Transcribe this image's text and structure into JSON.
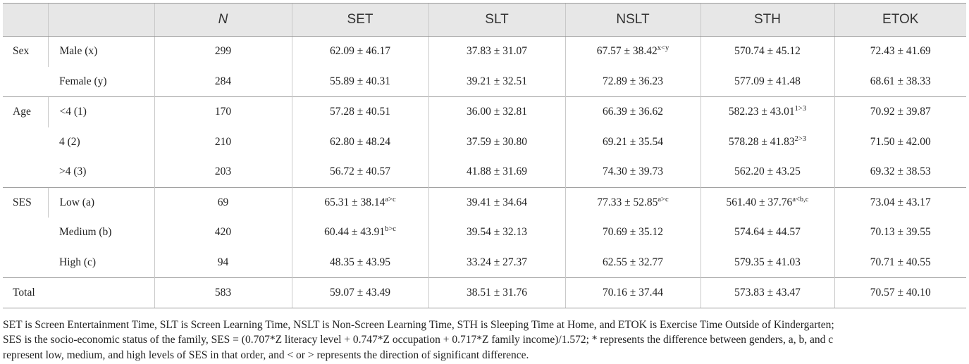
{
  "headers": [
    "",
    "",
    "N",
    "SET",
    "SLT",
    "NSLT",
    "STH",
    "ETOK"
  ],
  "groups": [
    {
      "label": "Sex",
      "rows": [
        {
          "name": "Male (x)",
          "n": "299",
          "cells": [
            {
              "v": "62.09 ± 46.17",
              "s": ""
            },
            {
              "v": "37.83 ± 31.07",
              "s": ""
            },
            {
              "v": "67.57 ± 38.42",
              "s": "x<y"
            },
            {
              "v": "570.74 ± 45.12",
              "s": ""
            },
            {
              "v": "72.43 ± 41.69",
              "s": ""
            }
          ]
        },
        {
          "name": "Female (y)",
          "n": "284",
          "cells": [
            {
              "v": "55.89 ± 40.31",
              "s": ""
            },
            {
              "v": "39.21 ± 32.51",
              "s": ""
            },
            {
              "v": "72.89 ± 36.23",
              "s": ""
            },
            {
              "v": "577.09 ± 41.48",
              "s": ""
            },
            {
              "v": "68.61 ± 38.33",
              "s": ""
            }
          ]
        }
      ]
    },
    {
      "label": "Age",
      "rows": [
        {
          "name": "<4 (1)",
          "n": "170",
          "cells": [
            {
              "v": "57.28 ± 40.51",
              "s": ""
            },
            {
              "v": "36.00 ± 32.81",
              "s": ""
            },
            {
              "v": "66.39 ± 36.62",
              "s": ""
            },
            {
              "v": "582.23 ± 43.01",
              "s": "1>3"
            },
            {
              "v": "70.92 ± 39.87",
              "s": ""
            }
          ]
        },
        {
          "name": "4 (2)",
          "n": "210",
          "cells": [
            {
              "v": "62.80 ± 48.24",
              "s": ""
            },
            {
              "v": "37.59 ± 30.80",
              "s": ""
            },
            {
              "v": "69.21 ± 35.54",
              "s": ""
            },
            {
              "v": "578.28 ± 41.83",
              "s": "2>3"
            },
            {
              "v": "71.50 ± 42.00",
              "s": ""
            }
          ]
        },
        {
          "name": ">4 (3)",
          "n": "203",
          "cells": [
            {
              "v": "56.72 ± 40.57",
              "s": ""
            },
            {
              "v": "41.88 ± 31.69",
              "s": ""
            },
            {
              "v": "74.30 ± 39.73",
              "s": ""
            },
            {
              "v": "562.20 ± 43.25",
              "s": ""
            },
            {
              "v": "69.32 ± 38.53",
              "s": ""
            }
          ]
        }
      ]
    },
    {
      "label": "SES",
      "rows": [
        {
          "name": "Low (a)",
          "n": "69",
          "cells": [
            {
              "v": "65.31 ± 38.14",
              "s": "a>c"
            },
            {
              "v": "39.41 ± 34.64",
              "s": ""
            },
            {
              "v": "77.33 ± 52.85",
              "s": "a>c"
            },
            {
              "v": "561.40 ± 37.76",
              "s": "a<b,c"
            },
            {
              "v": "73.04 ± 43.17",
              "s": ""
            }
          ]
        },
        {
          "name": "Medium (b)",
          "n": "420",
          "cells": [
            {
              "v": "60.44 ± 43.91",
              "s": "b>c"
            },
            {
              "v": "39.54 ± 32.13",
              "s": ""
            },
            {
              "v": "70.69 ± 35.12",
              "s": ""
            },
            {
              "v": "574.64 ± 44.57",
              "s": ""
            },
            {
              "v": "70.13 ± 39.55",
              "s": ""
            }
          ]
        },
        {
          "name": "High (c)",
          "n": "94",
          "cells": [
            {
              "v": "48.35 ± 43.95",
              "s": ""
            },
            {
              "v": "33.24 ± 27.37",
              "s": ""
            },
            {
              "v": "62.55 ± 32.77",
              "s": ""
            },
            {
              "v": "579.35 ± 41.03",
              "s": ""
            },
            {
              "v": "70.71 ± 40.55",
              "s": ""
            }
          ]
        }
      ]
    }
  ],
  "total": {
    "label": "Total",
    "n": "583",
    "cells": [
      "59.07 ± 43.49",
      "38.51 ± 31.76",
      "70.16 ± 37.44",
      "573.83 ± 43.47",
      "70.57 ± 40.10"
    ]
  },
  "notes": [
    "SET is Screen Entertainment Time, SLT is Screen Learning Time, NSLT is Non-Screen Learning Time, STH is Sleeping Time at Home, and ETOK is Exercise Time Outside of Kindergarten;",
    "SES is the socio-economic status of the family, SES = (0.707*Z literacy level + 0.747*Z occupation + 0.717*Z family income)/1.572; * represents the difference between genders, a, b, and c",
    "represent low, medium, and high levels of SES in that order, and < or > represents the direction of significant difference."
  ]
}
